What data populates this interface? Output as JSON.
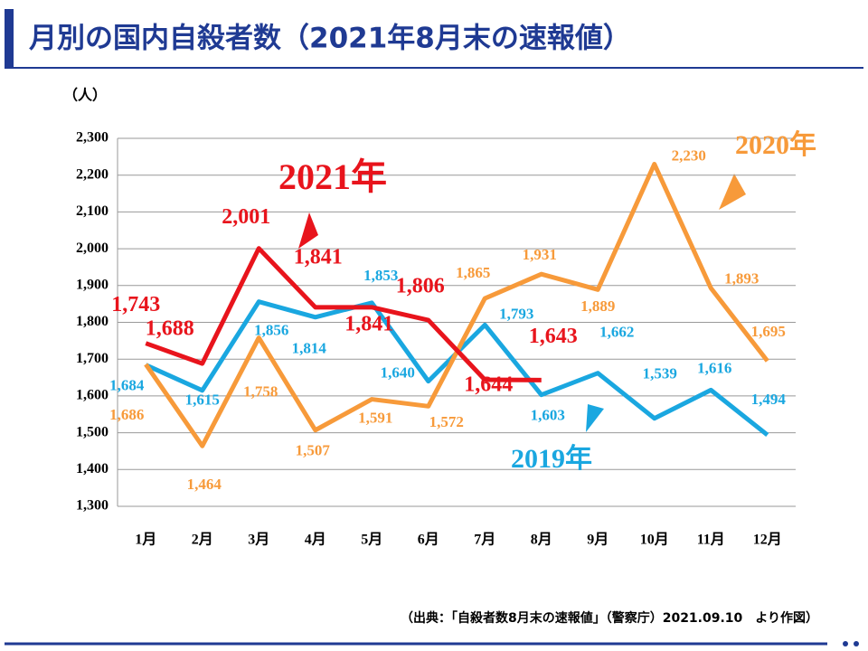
{
  "chart_data": {
    "type": "line",
    "title": "月別の国内自殺者数（2021年8月末の速報値）",
    "y_label": "（人）",
    "source": "（出典：「自殺者数8月末の速報値」（警察庁）2021.09.10　より作図）",
    "categories": [
      "1月",
      "2月",
      "3月",
      "4月",
      "5月",
      "6月",
      "7月",
      "8月",
      "9月",
      "10月",
      "11月",
      "12月"
    ],
    "ylim": [
      1300,
      2300
    ],
    "yticks": [
      {
        "value": 1300,
        "label": "1,300"
      },
      {
        "value": 1400,
        "label": "1,400"
      },
      {
        "value": 1500,
        "label": "1,500"
      },
      {
        "value": 1600,
        "label": "1,600"
      },
      {
        "value": 1700,
        "label": "1,700"
      },
      {
        "value": 1800,
        "label": "1,800"
      },
      {
        "value": 1900,
        "label": "1,900"
      },
      {
        "value": 2000,
        "label": "2,000"
      },
      {
        "value": 2100,
        "label": "2,100"
      },
      {
        "value": 2200,
        "label": "2,200"
      },
      {
        "value": 2300,
        "label": "2,300"
      }
    ],
    "grid": true,
    "series": [
      {
        "name": "2019年",
        "color": "#1aa7e0",
        "values": [
          1684,
          1615,
          1856,
          1814,
          1853,
          1640,
          1793,
          1603,
          1662,
          1539,
          1616,
          1494
        ],
        "value_labels": [
          "1,684",
          "1,615",
          "1,856",
          "1,814",
          "1,853",
          "1,640",
          "1,793",
          "1,603",
          "1,662",
          "1,539",
          "1,616",
          "1,494"
        ]
      },
      {
        "name": "2020年",
        "color": "#f79a3a",
        "values": [
          1686,
          1464,
          1758,
          1507,
          1591,
          1572,
          1865,
          1931,
          1889,
          2230,
          1893,
          1695
        ],
        "value_labels": [
          "1,686",
          "1,464",
          "1,758",
          "1,507",
          "1,591",
          "1,572",
          "1,865",
          "1,931",
          "1,889",
          "2,230",
          "1,893",
          "1,695"
        ]
      },
      {
        "name": "2021年",
        "color": "#e8141c",
        "values": [
          1743,
          1688,
          2001,
          1841,
          1841,
          1806,
          1644,
          1643,
          null,
          null,
          null,
          null
        ],
        "value_labels": [
          "1,743",
          "1,688",
          "2,001",
          "1,841",
          "1,841",
          "1,806",
          "1,644",
          "1,643",
          null,
          null,
          null,
          null
        ]
      }
    ]
  }
}
